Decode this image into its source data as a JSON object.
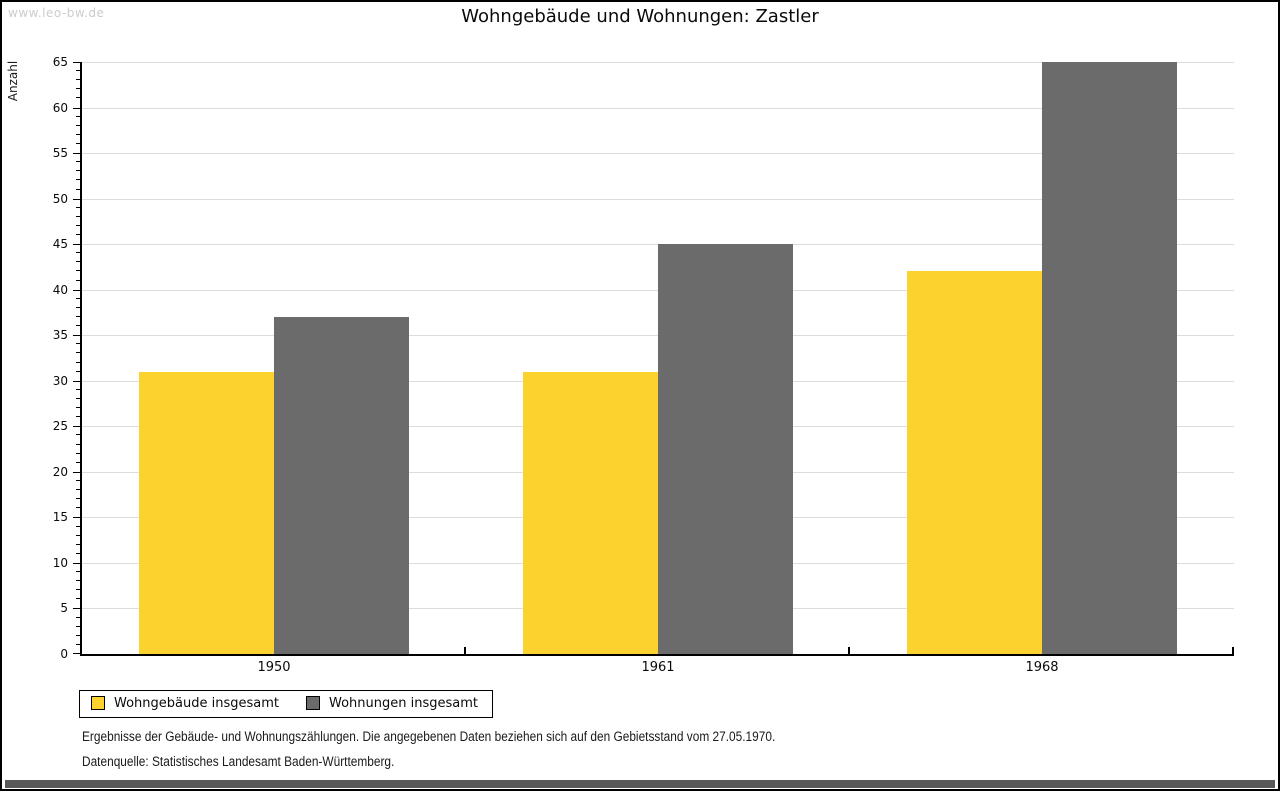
{
  "watermark": "www.leo-bw.de",
  "header": {
    "title": "Wohngebäude und Wohnungen: Zastler"
  },
  "chart_data": {
    "type": "bar",
    "title": "Wohngebäude und Wohnungen: Zastler",
    "xlabel": "",
    "ylabel": "Anzahl",
    "categories": [
      "1950",
      "1961",
      "1968"
    ],
    "series": [
      {
        "name": "Wohngebäude insgesamt",
        "color": "#FCD32E",
        "values": [
          31,
          31,
          42
        ]
      },
      {
        "name": "Wohnungen insgesamt",
        "color": "#6B6B6B",
        "values": [
          37,
          45,
          65
        ]
      }
    ],
    "ylim": [
      0,
      65
    ],
    "yticks": [
      0,
      5,
      10,
      15,
      20,
      25,
      30,
      35,
      40,
      45,
      50,
      55,
      60,
      65
    ],
    "ytick_step": 5,
    "minor_tick_step": 1,
    "grid": true,
    "legend_position": "bottom-left"
  },
  "footer": {
    "line1": "Ergebnisse der Gebäude- und Wohnungszählungen. Die angegebenen Daten beziehen sich auf den Gebietsstand vom 27.05.1970.",
    "line2": "Datenquelle: Statistisches Landesamt Baden-Württemberg."
  }
}
